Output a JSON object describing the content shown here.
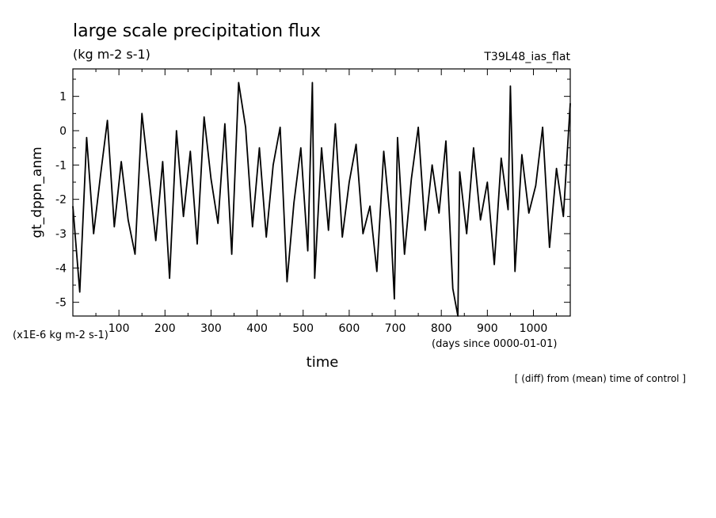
{
  "figure": {
    "title": "large scale precipitation flux",
    "subtitle": "(kg m-2 s-1)",
    "run_label": "T39L48_ias_flat",
    "footer_note": "[ (diff) from (mean) time of control ]"
  },
  "chart_data": {
    "type": "line",
    "title": "large scale precipitation flux",
    "xlabel": "time",
    "xlabel_units": "(days since 0000-01-01)",
    "ylabel": "gt_dppn_anm",
    "yscale_note": "(x1E-6 kg m-2 s-1)",
    "xlim": [
      0,
      1080
    ],
    "ylim": [
      -5.4,
      1.8
    ],
    "xticks": [
      100,
      200,
      300,
      400,
      500,
      600,
      700,
      800,
      900,
      1000
    ],
    "yticks": [
      -5,
      -4,
      -3,
      -2,
      -1,
      0,
      1
    ],
    "grid": false,
    "series": [
      {
        "x": [
          0,
          15,
          30,
          45,
          60,
          75,
          90,
          105,
          120,
          135,
          150,
          165,
          180,
          195,
          210,
          225,
          240,
          255,
          270,
          285,
          300,
          315,
          330,
          345,
          360,
          375,
          390,
          405,
          420,
          435,
          450,
          465,
          480,
          495,
          510,
          520,
          525,
          540,
          555,
          570,
          585,
          600,
          615,
          630,
          645,
          660,
          675,
          690,
          698,
          705,
          720,
          735,
          750,
          765,
          780,
          795,
          810,
          825,
          836,
          840,
          855,
          870,
          885,
          900,
          915,
          930,
          945,
          950,
          960,
          975,
          990,
          1005,
          1020,
          1035,
          1050,
          1065,
          1080
        ],
        "y": [
          -2.2,
          -4.7,
          -0.2,
          -3.0,
          -1.3,
          0.3,
          -2.8,
          -0.9,
          -2.6,
          -3.6,
          0.5,
          -1.3,
          -3.2,
          -0.9,
          -4.3,
          0.0,
          -2.5,
          -0.6,
          -3.3,
          0.4,
          -1.4,
          -2.7,
          0.2,
          -3.6,
          1.4,
          0.1,
          -2.8,
          -0.5,
          -3.1,
          -1.0,
          0.1,
          -4.4,
          -2.1,
          -0.5,
          -3.5,
          1.4,
          -4.3,
          -0.5,
          -2.9,
          0.2,
          -3.1,
          -1.5,
          -0.4,
          -3.0,
          -2.2,
          -4.1,
          -0.6,
          -2.7,
          -4.9,
          -0.2,
          -3.6,
          -1.4,
          0.1,
          -2.9,
          -1.0,
          -2.4,
          -0.3,
          -4.6,
          -5.4,
          -1.2,
          -3.0,
          -0.5,
          -2.6,
          -1.5,
          -3.9,
          -0.8,
          -2.3,
          1.3,
          -4.1,
          -0.7,
          -2.4,
          -1.6,
          0.1,
          -3.4,
          -1.1,
          -2.5,
          0.8
        ]
      }
    ]
  }
}
